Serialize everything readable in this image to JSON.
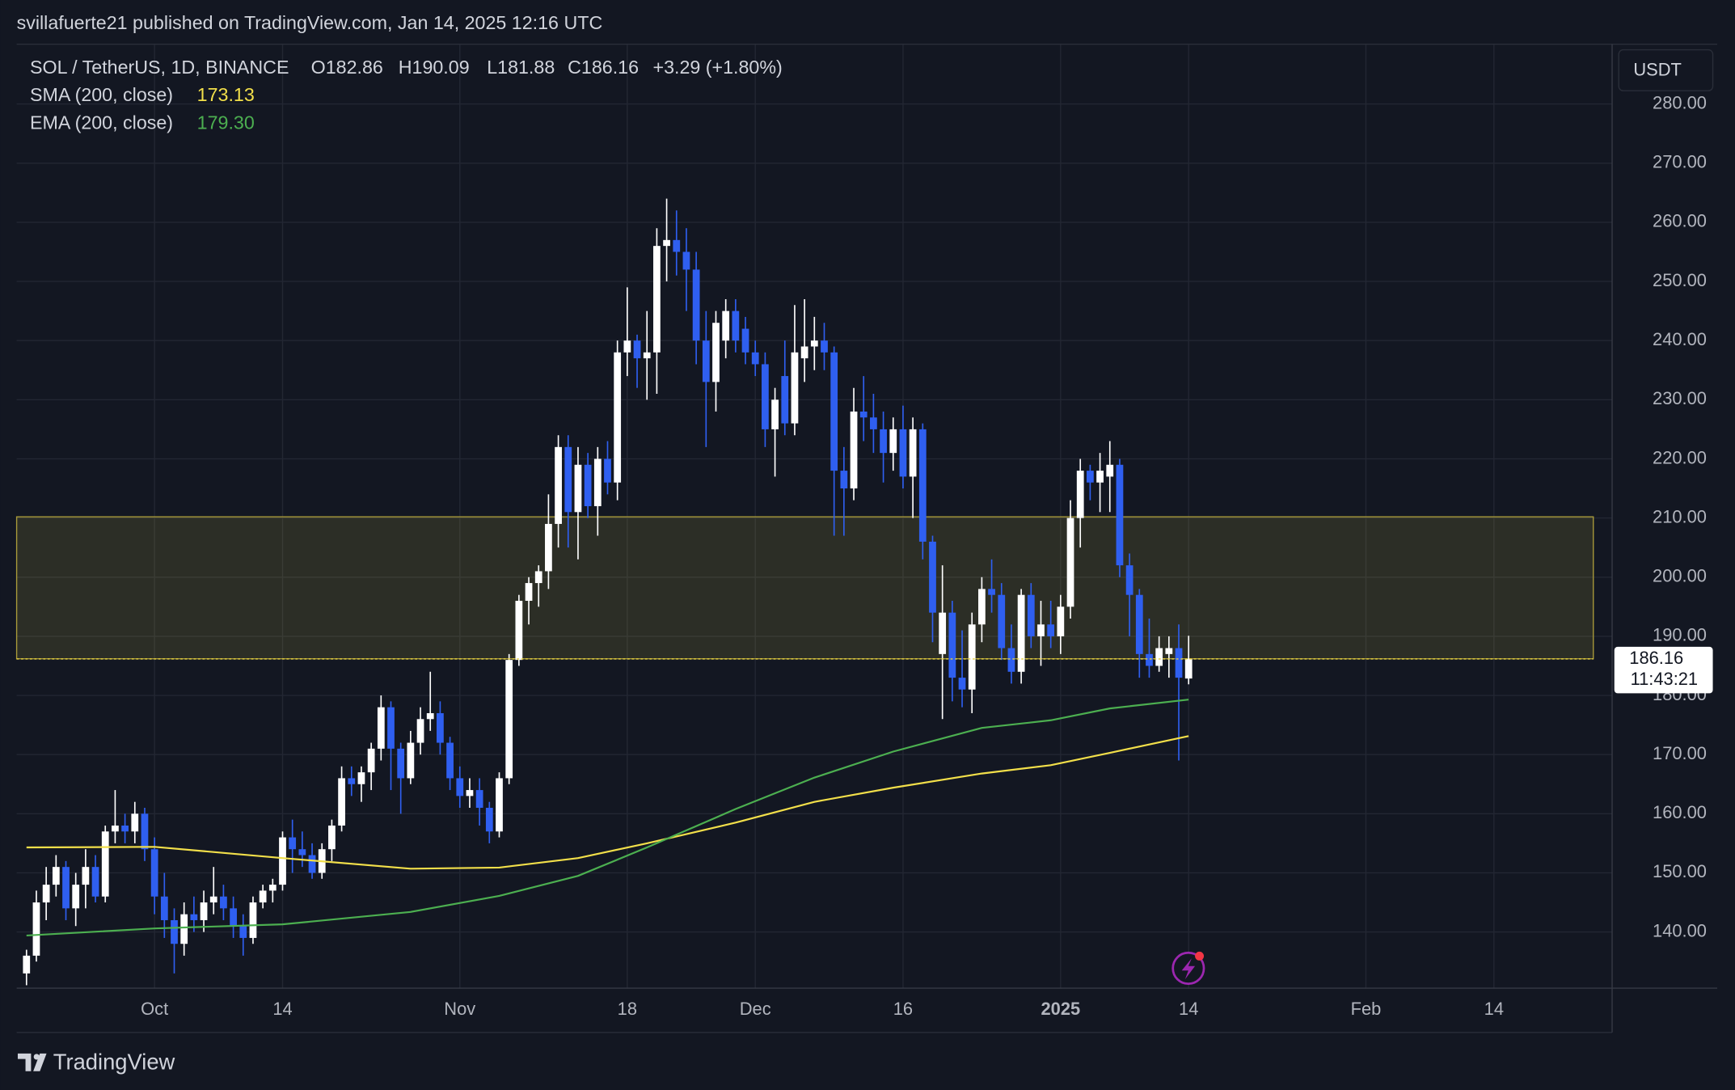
{
  "header": {
    "publisher": "svillafuerte21 published on TradingView.com, Jan 14, 2025 12:16 UTC"
  },
  "chart_data": {
    "type": "candlestick",
    "symbol": "SOL / TetherUS, 1D, BINANCE",
    "ohlc_labels": {
      "open": "O182.86",
      "high": "H190.09",
      "low": "L181.88",
      "close": "C186.16",
      "change": "+3.29 (+1.80%)"
    },
    "currency": "USDT",
    "countdown": "11:43:21",
    "up_color": "#ffffff",
    "down_color": "#2f5ff0",
    "grid": true,
    "x": [
      "2024-09-18",
      "2024-09-19",
      "2024-09-20",
      "2024-09-21",
      "2024-09-22",
      "2024-09-23",
      "2024-09-24",
      "2024-09-25",
      "2024-09-26",
      "2024-09-27",
      "2024-09-28",
      "2024-09-29",
      "2024-09-30",
      "2024-10-01",
      "2024-10-02",
      "2024-10-03",
      "2024-10-04",
      "2024-10-05",
      "2024-10-06",
      "2024-10-07",
      "2024-10-08",
      "2024-10-09",
      "2024-10-10",
      "2024-10-11",
      "2024-10-12",
      "2024-10-13",
      "2024-10-14",
      "2024-10-15",
      "2024-10-16",
      "2024-10-17",
      "2024-10-18",
      "2024-10-19",
      "2024-10-20",
      "2024-10-21",
      "2024-10-22",
      "2024-10-23",
      "2024-10-24",
      "2024-10-25",
      "2024-10-26",
      "2024-10-27",
      "2024-10-28",
      "2024-10-29",
      "2024-10-30",
      "2024-10-31",
      "2024-11-01",
      "2024-11-02",
      "2024-11-03",
      "2024-11-04",
      "2024-11-05",
      "2024-11-06",
      "2024-11-07",
      "2024-11-08",
      "2024-11-09",
      "2024-11-10",
      "2024-11-11",
      "2024-11-12",
      "2024-11-13",
      "2024-11-14",
      "2024-11-15",
      "2024-11-16",
      "2024-11-17",
      "2024-11-18",
      "2024-11-19",
      "2024-11-20",
      "2024-11-21",
      "2024-11-22",
      "2024-11-23",
      "2024-11-24",
      "2024-11-25",
      "2024-11-26",
      "2024-11-27",
      "2024-11-28",
      "2024-11-29",
      "2024-11-30",
      "2024-12-01",
      "2024-12-02",
      "2024-12-03",
      "2024-12-04",
      "2024-12-05",
      "2024-12-06",
      "2024-12-07",
      "2024-12-08",
      "2024-12-09",
      "2024-12-10",
      "2024-12-11",
      "2024-12-12",
      "2024-12-13",
      "2024-12-14",
      "2024-12-15",
      "2024-12-16",
      "2024-12-17",
      "2024-12-18",
      "2024-12-19",
      "2024-12-20",
      "2024-12-21",
      "2024-12-22",
      "2024-12-23",
      "2024-12-24",
      "2024-12-25",
      "2024-12-26",
      "2024-12-27",
      "2024-12-28",
      "2024-12-29",
      "2024-12-30",
      "2024-12-31",
      "2025-01-01",
      "2025-01-02",
      "2025-01-03",
      "2025-01-04",
      "2025-01-05",
      "2025-01-06",
      "2025-01-07",
      "2025-01-08",
      "2025-01-09",
      "2025-01-10",
      "2025-01-11",
      "2025-01-12",
      "2025-01-13",
      "2025-01-14"
    ],
    "open": [
      133,
      136,
      145,
      148,
      151,
      144,
      148,
      151,
      146,
      157,
      158,
      157,
      160,
      154,
      146,
      142,
      138,
      143,
      142,
      145,
      146,
      144,
      141,
      139,
      145,
      147,
      148,
      156,
      154,
      153,
      150,
      154,
      158,
      166,
      165,
      167,
      171,
      178,
      171,
      166,
      172,
      176,
      177,
      172,
      166,
      163,
      164,
      161,
      157,
      166,
      186,
      196,
      199,
      201,
      209,
      222,
      211,
      219,
      212,
      220,
      216,
      238,
      240,
      237,
      238,
      256,
      257,
      255,
      252,
      240,
      233,
      240,
      245,
      242,
      238,
      236,
      225,
      234,
      226,
      237,
      239,
      240,
      238,
      218,
      215,
      228,
      227,
      225,
      221,
      225,
      217,
      225,
      206,
      187,
      194,
      183,
      181,
      192,
      198,
      197,
      188,
      184,
      197,
      190,
      192,
      190,
      195,
      210,
      218,
      216,
      217,
      219,
      202,
      197,
      187,
      185,
      187,
      188,
      182.86
    ],
    "high": [
      137,
      147,
      151,
      153,
      152,
      150,
      154,
      153,
      158,
      164,
      160,
      162,
      161,
      156,
      150,
      144,
      145,
      146,
      147,
      151,
      148,
      146,
      143,
      146,
      148,
      149,
      157,
      159,
      157,
      155,
      155,
      159,
      168,
      168,
      168,
      172,
      180,
      179,
      172,
      174,
      178,
      184,
      179,
      173,
      168,
      166,
      166,
      162,
      167,
      187,
      197,
      200,
      202,
      214,
      224,
      224,
      222,
      221,
      222,
      223,
      240,
      249,
      241,
      245,
      259,
      264,
      262,
      259,
      255,
      245,
      245,
      247,
      247,
      244,
      240,
      238,
      232,
      240,
      246,
      247,
      244,
      243,
      239,
      222,
      232,
      234,
      231,
      228,
      227,
      229,
      227,
      226,
      207,
      202,
      196,
      191,
      194,
      200,
      203,
      199,
      192,
      198,
      199,
      196,
      196,
      197,
      213,
      220,
      219,
      221,
      223,
      220,
      204,
      198,
      193,
      190,
      190,
      192,
      190.09
    ],
    "low": [
      131,
      135,
      142,
      146,
      142,
      141,
      144,
      145,
      145,
      155,
      155,
      155,
      152,
      143,
      139,
      133,
      136,
      140,
      140,
      143,
      142,
      139,
      136,
      138,
      144,
      145,
      147,
      150,
      151,
      149,
      149,
      152,
      157,
      163,
      162,
      164,
      169,
      164,
      160,
      165,
      170,
      174,
      170,
      164,
      161,
      161,
      158,
      155,
      156,
      165,
      185,
      192,
      195,
      198,
      205,
      205,
      203,
      210,
      207,
      214,
      213,
      234,
      232,
      230,
      231,
      250,
      251,
      245,
      236,
      222,
      228,
      237,
      238,
      236,
      234,
      222,
      217,
      224,
      224,
      233,
      235,
      235,
      207,
      207,
      213,
      223,
      221,
      216,
      218,
      215,
      210,
      203,
      189,
      176,
      179,
      178,
      177,
      189,
      194,
      186,
      182,
      182,
      188,
      185,
      188,
      187,
      193,
      205,
      213,
      211,
      211,
      200,
      190,
      183,
      183,
      184,
      183,
      169,
      181.88
    ],
    "close": [
      136,
      145,
      148,
      151,
      144,
      148,
      151,
      146,
      157,
      158,
      157,
      160,
      154,
      146,
      142,
      138,
      143,
      142,
      145,
      146,
      144,
      141,
      139,
      145,
      147,
      148,
      156,
      154,
      153,
      150,
      154,
      158,
      166,
      165,
      167,
      171,
      178,
      171,
      166,
      172,
      176,
      177,
      172,
      166,
      163,
      164,
      161,
      157,
      166,
      186,
      196,
      199,
      201,
      209,
      222,
      211,
      219,
      212,
      220,
      216,
      238,
      240,
      237,
      238,
      256,
      257,
      255,
      252,
      240,
      233,
      243,
      245,
      240,
      238,
      236,
      225,
      230,
      226,
      238,
      239,
      240,
      238,
      218,
      215,
      228,
      227,
      225,
      221,
      225,
      217,
      225,
      206,
      194,
      194,
      183,
      181,
      192,
      198,
      197,
      188,
      184,
      197,
      190,
      192,
      190,
      195,
      210,
      218,
      216,
      218,
      219,
      202,
      197,
      187,
      185,
      188,
      188,
      183,
      186.16
    ],
    "indicators": [
      {
        "name": "SMA (200, close)",
        "legend_label": "173.13",
        "color": "#f2df4a",
        "x": [
          "2024-09-18",
          "2024-10-01",
          "2024-10-14",
          "2024-10-27",
          "2024-11-05",
          "2024-11-13",
          "2024-11-20",
          "2024-11-29",
          "2024-12-07",
          "2024-12-15",
          "2024-12-24",
          "2024-12-31",
          "2025-01-06",
          "2025-01-14"
        ],
        "values": [
          154.3,
          154.4,
          152.5,
          150.7,
          150.9,
          152.5,
          155.0,
          158.5,
          162.0,
          164.4,
          166.8,
          168.2,
          170.3,
          173.13
        ]
      },
      {
        "name": "EMA (200, close)",
        "legend_label": "179.30",
        "color": "#4caf50",
        "x": [
          "2024-09-18",
          "2024-10-01",
          "2024-10-14",
          "2024-10-27",
          "2024-11-05",
          "2024-11-13",
          "2024-11-20",
          "2024-11-29",
          "2024-12-07",
          "2024-12-15",
          "2024-12-24",
          "2024-12-31",
          "2025-01-06",
          "2025-01-14"
        ],
        "values": [
          139.4,
          140.6,
          141.3,
          143.4,
          146.1,
          149.5,
          154.3,
          160.8,
          166.1,
          170.5,
          174.5,
          175.8,
          177.8,
          179.3
        ]
      }
    ],
    "zone": {
      "low": 186.2,
      "high": 210.2
    },
    "xlim": [
      "2024-09-17",
      "2025-02-26"
    ],
    "xticks": [
      {
        "value": "2024-10-01",
        "label": "Oct"
      },
      {
        "value": "2024-10-14",
        "label": "14"
      },
      {
        "value": "2024-11-01",
        "label": "Nov"
      },
      {
        "value": "2024-11-18",
        "label": "18"
      },
      {
        "value": "2024-12-01",
        "label": "Dec"
      },
      {
        "value": "2024-12-16",
        "label": "16"
      },
      {
        "value": "2025-01-01",
        "label": "2025",
        "bold": true
      },
      {
        "value": "2025-01-14",
        "label": "14"
      },
      {
        "value": "2025-02-01",
        "label": "Feb"
      },
      {
        "value": "2025-02-14",
        "label": "14"
      }
    ],
    "ylim": [
      130.5,
      290.1
    ],
    "yticks": [
      {
        "value": 140,
        "label": "140.00"
      },
      {
        "value": 150,
        "label": "150.00"
      },
      {
        "value": 160,
        "label": "160.00"
      },
      {
        "value": 170,
        "label": "170.00"
      },
      {
        "value": 180,
        "label": "180.00"
      },
      {
        "value": 190,
        "label": "190.00"
      },
      {
        "value": 200,
        "label": "200.00"
      },
      {
        "value": 210,
        "label": "210.00"
      },
      {
        "value": 220,
        "label": "220.00"
      },
      {
        "value": 230,
        "label": "230.00"
      },
      {
        "value": 240,
        "label": "240.00"
      },
      {
        "value": 250,
        "label": "250.00"
      },
      {
        "value": 260,
        "label": "260.00"
      },
      {
        "value": 270,
        "label": "270.00"
      },
      {
        "value": 280,
        "label": "280.00"
      }
    ]
  },
  "footer": {
    "brand": "TradingView"
  }
}
